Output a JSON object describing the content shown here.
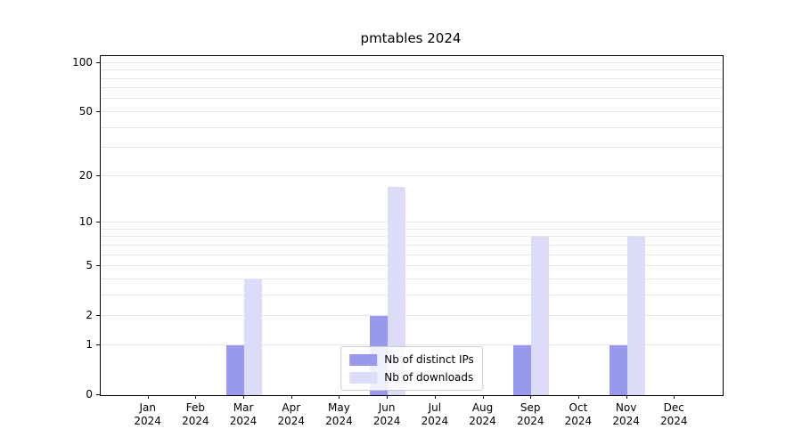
{
  "title": "pmtables 2024",
  "chart_data": {
    "type": "bar",
    "title": "pmtables 2024",
    "categories": [
      {
        "month": "Jan",
        "year": "2024"
      },
      {
        "month": "Feb",
        "year": "2024"
      },
      {
        "month": "Mar",
        "year": "2024"
      },
      {
        "month": "Apr",
        "year": "2024"
      },
      {
        "month": "May",
        "year": "2024"
      },
      {
        "month": "Jun",
        "year": "2024"
      },
      {
        "month": "Jul",
        "year": "2024"
      },
      {
        "month": "Aug",
        "year": "2024"
      },
      {
        "month": "Sep",
        "year": "2024"
      },
      {
        "month": "Oct",
        "year": "2024"
      },
      {
        "month": "Nov",
        "year": "2024"
      },
      {
        "month": "Dec",
        "year": "2024"
      }
    ],
    "series": [
      {
        "name": "Nb of distinct IPs",
        "color": "#9999ec",
        "values": [
          0,
          0,
          1,
          0,
          0,
          2,
          0,
          0,
          1,
          0,
          1,
          0
        ]
      },
      {
        "name": "Nb of downloads",
        "color": "#dcdcf8",
        "values": [
          0,
          0,
          4,
          0,
          0,
          17,
          0,
          0,
          8,
          0,
          8,
          0
        ]
      }
    ],
    "yticks": [
      0,
      1,
      2,
      5,
      10,
      20,
      50,
      100
    ],
    "minor_gridlines": [
      3,
      4,
      6,
      7,
      8,
      9,
      30,
      40,
      60,
      70,
      80,
      90
    ],
    "scale": "log1p",
    "ylim": [
      0,
      110
    ],
    "grid": true,
    "legend_position": "lower center",
    "xlabel": "",
    "ylabel": ""
  }
}
